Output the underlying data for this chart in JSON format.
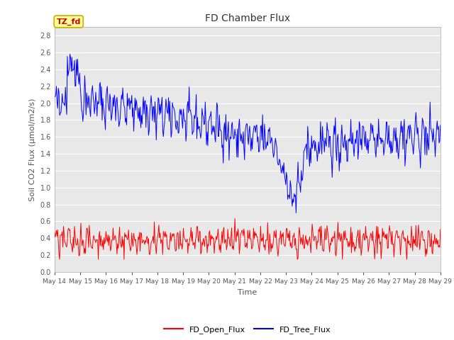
{
  "title": "FD Chamber Flux",
  "xlabel": "Time",
  "ylabel": "Soil CO2 Flux (μmol/m2/s)",
  "ylim": [
    0.0,
    2.9
  ],
  "yticks": [
    0.0,
    0.2,
    0.4,
    0.6,
    0.8,
    1.0,
    1.2,
    1.4,
    1.6,
    1.8,
    2.0,
    2.2,
    2.4,
    2.6,
    2.8
  ],
  "date_labels": [
    "May 14",
    "May 15",
    "May 16",
    "May 17",
    "May 18",
    "May 19",
    "May 20",
    "May 21",
    "May 22",
    "May 23",
    "May 24",
    "May 25",
    "May 26",
    "May 27",
    "May 28",
    "May 29"
  ],
  "annotation_text": "TZ_fd",
  "fig_bg_color": "#ffffff",
  "plot_bg_color": "#e8e8e8",
  "grid_color": "#ffffff",
  "line_blue": "#0000ff",
  "line_red": "#ff0000",
  "legend_labels": [
    "FD_Open_Flux",
    "FD_Tree_Flux"
  ],
  "seed": 42,
  "n_points": 600,
  "days": 15
}
